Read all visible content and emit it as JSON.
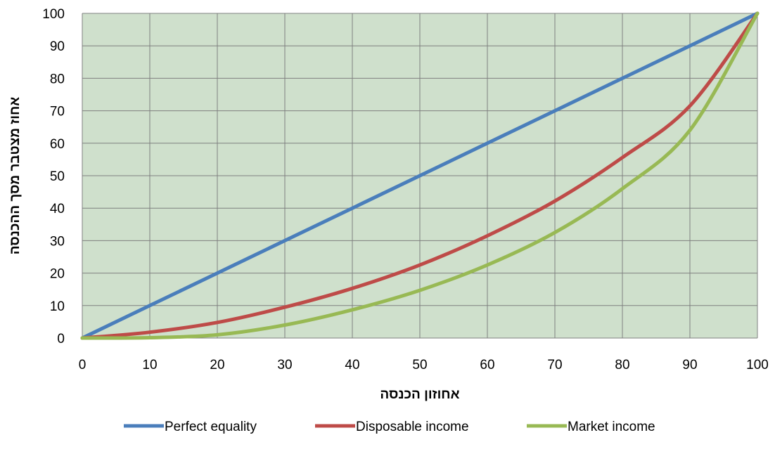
{
  "chart_data": {
    "type": "line",
    "title": "",
    "xlabel": "אחוזון הכנסה",
    "ylabel": "אחוז מצטבר מסך ההכנסה",
    "xlim": [
      0,
      100
    ],
    "ylim": [
      0,
      100
    ],
    "x_ticks": [
      "0",
      "10",
      "20",
      "30",
      "40",
      "50",
      "60",
      "70",
      "80",
      "90",
      "100"
    ],
    "y_ticks": [
      "0",
      "10",
      "20",
      "30",
      "40",
      "50",
      "60",
      "70",
      "80",
      "90",
      "100"
    ],
    "grid": true,
    "plot_background": "#cfe0cc",
    "grid_color": "#7f7f7f",
    "legend_position": "bottom",
    "x": [
      0,
      10,
      20,
      30,
      40,
      50,
      60,
      70,
      80,
      90,
      100
    ],
    "series": [
      {
        "name": "Perfect equality",
        "color": "#4a7ebb",
        "values": [
          0,
          10,
          20,
          30,
          40,
          50,
          60,
          70,
          80,
          90,
          100
        ]
      },
      {
        "name": "Disposable income",
        "color": "#be4b48",
        "values": [
          0,
          1.8,
          4.8,
          9.5,
          15.3,
          22.5,
          31.5,
          42.2,
          55.6,
          71.5,
          100
        ]
      },
      {
        "name": "Market income",
        "color": "#98b954",
        "values": [
          0,
          0.1,
          1,
          4,
          8.7,
          14.7,
          22.5,
          32.5,
          46,
          64,
          100
        ]
      }
    ]
  }
}
